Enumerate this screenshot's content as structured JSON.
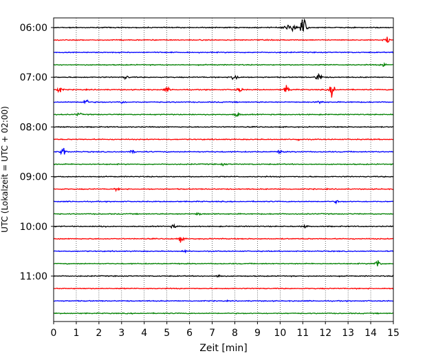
{
  "chart_data": {
    "type": "line",
    "title": "",
    "xlabel": "Zeit  [min]",
    "ylabel": "UTC (Lokalzeit = UTC + 02:00)",
    "xlim": [
      0,
      15
    ],
    "x_ticks": [
      0,
      1,
      2,
      3,
      4,
      5,
      6,
      7,
      8,
      9,
      10,
      11,
      12,
      13,
      14,
      15
    ],
    "x_tick_labels": [
      "0",
      "1",
      "2",
      "3",
      "4",
      "5",
      "6",
      "7",
      "8",
      "9",
      "10",
      "11",
      "12",
      "13",
      "14",
      "15"
    ],
    "y_tick_labels": [
      "06:00",
      "07:00",
      "08:00",
      "09:00",
      "10:00",
      "11:00"
    ],
    "y_tick_trace_index": [
      0,
      4,
      8,
      12,
      16,
      20
    ],
    "grid": "vertical dotted",
    "trace_interval_min": 15,
    "color_cycle": [
      "#000000",
      "#ff0000",
      "#0000ff",
      "#008000"
    ],
    "series": [
      {
        "start": "06:00",
        "events": [
          {
            "t": 10.3,
            "a": 6
          },
          {
            "t": 10.6,
            "a": 8
          },
          {
            "t": 11.0,
            "a": 12
          },
          {
            "t": 11.05,
            "a": 14
          }
        ]
      },
      {
        "start": "06:15",
        "events": [
          {
            "t": 14.7,
            "a": 6
          }
        ]
      },
      {
        "start": "06:30",
        "events": []
      },
      {
        "start": "06:45",
        "events": [
          {
            "t": 14.6,
            "a": 4
          }
        ]
      },
      {
        "start": "07:00",
        "events": [
          {
            "t": 3.2,
            "a": 3
          },
          {
            "t": 8.0,
            "a": 13
          },
          {
            "t": 11.7,
            "a": 10
          }
        ]
      },
      {
        "start": "07:15",
        "events": [
          {
            "t": 0.25,
            "a": 7
          },
          {
            "t": 5.0,
            "a": 4
          },
          {
            "t": 8.2,
            "a": 5
          },
          {
            "t": 10.3,
            "a": 8
          },
          {
            "t": 12.3,
            "a": 12
          }
        ]
      },
      {
        "start": "07:30",
        "events": [
          {
            "t": 1.4,
            "a": 6
          },
          {
            "t": 3.0,
            "a": 3
          },
          {
            "t": 11.8,
            "a": 3
          }
        ]
      },
      {
        "start": "07:45",
        "events": [
          {
            "t": 1.1,
            "a": 3
          },
          {
            "t": 8.1,
            "a": 4
          }
        ]
      },
      {
        "start": "08:00",
        "events": []
      },
      {
        "start": "08:15",
        "events": [
          {
            "t": 10.8,
            "a": 2
          }
        ]
      },
      {
        "start": "08:30",
        "events": [
          {
            "t": 0.4,
            "a": 9
          },
          {
            "t": 3.5,
            "a": 3
          },
          {
            "t": 10.0,
            "a": 3
          }
        ]
      },
      {
        "start": "08:45",
        "events": [
          {
            "t": 7.5,
            "a": 2
          }
        ]
      },
      {
        "start": "09:00",
        "events": []
      },
      {
        "start": "09:15",
        "events": [
          {
            "t": 2.8,
            "a": 2
          }
        ]
      },
      {
        "start": "09:30",
        "events": [
          {
            "t": 12.5,
            "a": 2
          }
        ]
      },
      {
        "start": "09:45",
        "events": [
          {
            "t": 6.4,
            "a": 3
          }
        ]
      },
      {
        "start": "10:00",
        "events": [
          {
            "t": 2.1,
            "a": 3
          },
          {
            "t": 5.3,
            "a": 3
          },
          {
            "t": 11.1,
            "a": 2
          }
        ]
      },
      {
        "start": "10:15",
        "events": [
          {
            "t": 5.6,
            "a": 5
          }
        ]
      },
      {
        "start": "10:30",
        "events": [
          {
            "t": 5.8,
            "a": 2
          }
        ]
      },
      {
        "start": "10:45",
        "events": [
          {
            "t": 14.3,
            "a": 10
          }
        ]
      },
      {
        "start": "11:00",
        "events": [
          {
            "t": 7.3,
            "a": 3
          }
        ]
      },
      {
        "start": "11:15",
        "events": []
      },
      {
        "start": "11:30",
        "events": []
      },
      {
        "start": "11:45",
        "events": []
      }
    ]
  }
}
